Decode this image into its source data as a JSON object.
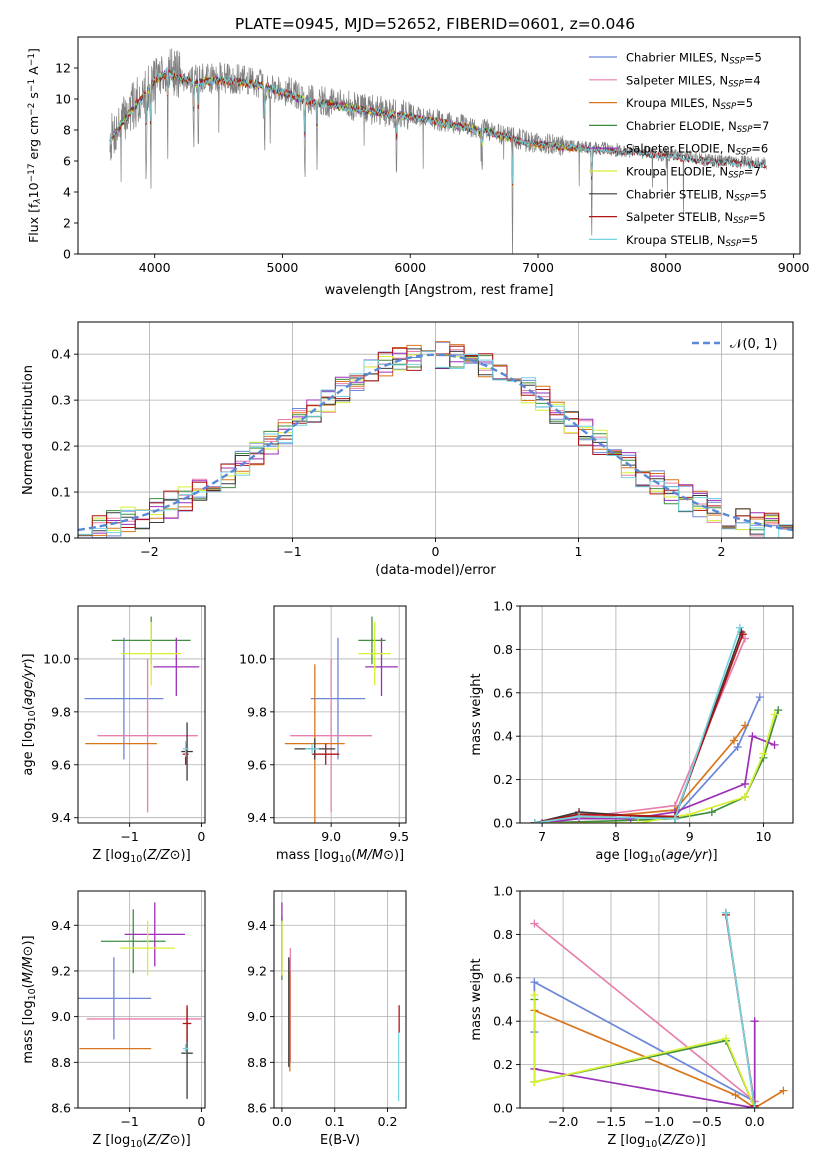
{
  "figure_title": "PLATE=0945, MJD=52652, FIBERID=0601, z=0.046",
  "models": [
    {
      "name": "Chabrier MILES",
      "nssp": "5",
      "color": "#6b87d8"
    },
    {
      "name": "Salpeter MILES",
      "nssp": "4",
      "color": "#e77fae"
    },
    {
      "name": "Kroupa MILES",
      "nssp": "5",
      "color": "#d8751d"
    },
    {
      "name": "Chabrier ELODIE",
      "nssp": "7",
      "color": "#3f8f3f"
    },
    {
      "name": "Salpeter ELODIE",
      "nssp": "6",
      "color": "#9b2fb8"
    },
    {
      "name": "Kroupa ELODIE",
      "nssp": "7",
      "color": "#d8ef33"
    },
    {
      "name": "Chabrier STELIB",
      "nssp": "5",
      "color": "#3a3a3a"
    },
    {
      "name": "Salpeter STELIB",
      "nssp": "5",
      "color": "#b01515"
    },
    {
      "name": "Kroupa STELIB",
      "nssp": "5",
      "color": "#76d4e0"
    }
  ],
  "chart_data": [
    {
      "id": "spectrum",
      "type": "line",
      "xlabel": "wavelength [Angstrom, rest frame]",
      "ylabel_parts": {
        "a": "Flux [f",
        "b": "λ",
        "c": "10",
        "d": "−17",
        "e": " erg cm",
        "f": "−2",
        "g": " s",
        "h": "−1",
        "i": " A",
        "j": "−1",
        "k": "]"
      },
      "xlim": [
        3400,
        9050
      ],
      "ylim": [
        0,
        14
      ],
      "xticks": [
        4000,
        5000,
        6000,
        7000,
        8000,
        9000
      ],
      "yticks": [
        0,
        2,
        4,
        6,
        8,
        10,
        12
      ],
      "data_color": "#808080",
      "legend_position": "top-right",
      "legend_nssp_prefix": "N",
      "legend_nssp_sub": "SSP",
      "continuum": [
        [
          3650,
          7.4
        ],
        [
          3800,
          9.2
        ],
        [
          3900,
          10.2
        ],
        [
          4000,
          11.4
        ],
        [
          4100,
          11.9
        ],
        [
          4300,
          11.2
        ],
        [
          4500,
          11.4
        ],
        [
          4800,
          11.1
        ],
        [
          5000,
          10.6
        ],
        [
          5200,
          10.0
        ],
        [
          5500,
          9.6
        ],
        [
          5800,
          9.2
        ],
        [
          6000,
          9.0
        ],
        [
          6300,
          8.5
        ],
        [
          6600,
          8.0
        ],
        [
          6900,
          7.3
        ],
        [
          7200,
          7.0
        ],
        [
          7500,
          6.8
        ],
        [
          7800,
          6.6
        ],
        [
          8100,
          6.3
        ],
        [
          8400,
          6.0
        ],
        [
          8700,
          5.9
        ],
        [
          8790,
          5.8
        ]
      ],
      "absorption_lines": [
        [
          3934,
          0.3
        ],
        [
          3969,
          0.35
        ],
        [
          4102,
          0.5
        ],
        [
          4305,
          0.55
        ],
        [
          4341,
          0.55
        ],
        [
          4861,
          0.5
        ],
        [
          5175,
          0.35
        ],
        [
          5270,
          0.6
        ],
        [
          5892,
          0.4
        ],
        [
          6563,
          0.6
        ],
        [
          6800,
          0.0
        ],
        [
          7420,
          0.0
        ]
      ]
    },
    {
      "id": "residuals",
      "type": "histogram",
      "xlabel": "(data-model)/error",
      "ylabel": "Normed distribution",
      "xlim": [
        -2.5,
        2.5
      ],
      "ylim": [
        0,
        0.47
      ],
      "xticks": [
        -2,
        -1,
        0,
        1,
        2
      ],
      "yticks": [
        0,
        0.1,
        0.2,
        0.3,
        0.4
      ],
      "bin_width": 0.1,
      "legend_position": "top-right",
      "legend_label": "𝒩(0, 1)",
      "normal_curve_color": "#5a8ad6"
    },
    {
      "id": "age-vs-z",
      "type": "errorbar",
      "xlabel": "Z [log10(Z/Z⊙)]",
      "ylabel": "age  [log10(age/yr)]",
      "xlim": [
        -1.72,
        0.05
      ],
      "ylim": [
        9.38,
        10.2
      ],
      "xticks": [
        -1,
        0
      ],
      "yticks": [
        9.4,
        9.6,
        9.8,
        10.0
      ],
      "points": [
        {
          "color": "#6b87d8",
          "x": -1.08,
          "xerr": 0.55,
          "y": 9.85,
          "yerr": 0.23
        },
        {
          "color": "#e77fae",
          "x": -0.75,
          "xerr": 0.7,
          "y": 9.71,
          "yerr": 0.29
        },
        {
          "color": "#d8751d",
          "x": -1.12,
          "xerr": 0.5,
          "y": 9.68,
          "yerr": 0.0
        },
        {
          "color": "#3f8f3f",
          "x": -0.7,
          "xerr": 0.55,
          "y": 10.07,
          "yerr": 0.09
        },
        {
          "color": "#9b2fb8",
          "x": -0.35,
          "xerr": 0.32,
          "y": 9.97,
          "yerr": 0.11
        },
        {
          "color": "#d8ef33",
          "x": -0.7,
          "xerr": 0.42,
          "y": 10.02,
          "yerr": 0.12
        },
        {
          "color": "#3a3a3a",
          "x": -0.2,
          "xerr": 0.08,
          "y": 9.65,
          "yerr": 0.11
        },
        {
          "color": "#b01515",
          "x": -0.22,
          "xerr": 0.04,
          "y": 9.64,
          "yerr": 0.04
        },
        {
          "color": "#76d4e0",
          "x": -0.22,
          "xerr": 0.04,
          "y": 9.66,
          "yerr": 0.03
        }
      ]
    },
    {
      "id": "age-vs-mass",
      "type": "errorbar",
      "xlabel": "mass [log10(M/M⊙)]",
      "ylabel": "",
      "xlim": [
        8.58,
        9.55
      ],
      "ylim": [
        9.38,
        10.2
      ],
      "xticks": [
        9.0,
        9.5
      ],
      "yticks": [
        9.4,
        9.6,
        9.8,
        10.0
      ],
      "points": [
        {
          "color": "#6b87d8",
          "x": 9.05,
          "xerr": 0.2,
          "y": 9.85,
          "yerr": 0.23
        },
        {
          "color": "#e77fae",
          "x": 9.0,
          "xerr": 0.3,
          "y": 9.71,
          "yerr": 0.29
        },
        {
          "color": "#d8751d",
          "x": 8.88,
          "xerr": 0.22,
          "y": 9.68,
          "yerr": 0.3
        },
        {
          "color": "#3f8f3f",
          "x": 9.3,
          "xerr": 0.1,
          "y": 10.07,
          "yerr": 0.09
        },
        {
          "color": "#9b2fb8",
          "x": 9.37,
          "xerr": 0.12,
          "y": 9.97,
          "yerr": 0.11
        },
        {
          "color": "#d8ef33",
          "x": 9.32,
          "xerr": 0.12,
          "y": 10.02,
          "yerr": 0.12
        },
        {
          "color": "#3a3a3a",
          "x": 8.88,
          "xerr": 0.15,
          "y": 9.66,
          "yerr": 0.04
        },
        {
          "color": "#b01515",
          "x": 8.96,
          "xerr": 0.1,
          "y": 9.64,
          "yerr": 0.04
        },
        {
          "color": "#76d4e0",
          "x": 8.86,
          "xerr": 0.05,
          "y": 9.66,
          "yerr": 0.02
        }
      ]
    },
    {
      "id": "mass-weight-vs-age",
      "type": "line",
      "xlabel": "age  [log10(age/yr)]",
      "ylabel": "mass weight",
      "xlim": [
        6.7,
        10.4
      ],
      "ylim": [
        0,
        1.0
      ],
      "xticks": [
        7,
        8,
        9,
        10
      ],
      "yticks": [
        0,
        0.2,
        0.4,
        0.6,
        0.8,
        1.0
      ],
      "series": [
        {
          "color": "#6b87d8",
          "points": [
            [
              6.9,
              0.0
            ],
            [
              7.5,
              0.04
            ],
            [
              8.0,
              0.02
            ],
            [
              8.8,
              0.03
            ],
            [
              9.65,
              0.35
            ],
            [
              9.95,
              0.58
            ]
          ]
        },
        {
          "color": "#e77fae",
          "points": [
            [
              6.9,
              0.0
            ],
            [
              8.8,
              0.08
            ],
            [
              9.75,
              0.85
            ]
          ]
        },
        {
          "color": "#d8751d",
          "points": [
            [
              6.9,
              0.0
            ],
            [
              7.5,
              0.02
            ],
            [
              8.8,
              0.06
            ],
            [
              9.6,
              0.38
            ],
            [
              9.75,
              0.45
            ]
          ]
        },
        {
          "color": "#3f8f3f",
          "points": [
            [
              6.9,
              0.0
            ],
            [
              8.0,
              0.01
            ],
            [
              8.8,
              0.02
            ],
            [
              9.3,
              0.05
            ],
            [
              9.75,
              0.12
            ],
            [
              10.0,
              0.3
            ],
            [
              10.2,
              0.52
            ]
          ]
        },
        {
          "color": "#9b2fb8",
          "points": [
            [
              7.0,
              0.0
            ],
            [
              7.5,
              0.02
            ],
            [
              8.2,
              0.02
            ],
            [
              8.8,
              0.05
            ],
            [
              9.75,
              0.18
            ],
            [
              9.85,
              0.4
            ],
            [
              10.15,
              0.36
            ]
          ]
        },
        {
          "color": "#d8ef33",
          "points": [
            [
              6.9,
              0.0
            ],
            [
              8.3,
              0.0
            ],
            [
              9.0,
              0.04
            ],
            [
              9.75,
              0.12
            ],
            [
              10.0,
              0.32
            ],
            [
              10.15,
              0.5
            ]
          ]
        },
        {
          "color": "#3a3a3a",
          "points": [
            [
              6.9,
              0.0
            ],
            [
              7.5,
              0.05
            ],
            [
              8.8,
              0.02
            ],
            [
              9.7,
              0.88
            ]
          ]
        },
        {
          "color": "#b01515",
          "points": [
            [
              6.9,
              0.0
            ],
            [
              7.5,
              0.04
            ],
            [
              8.8,
              0.03
            ],
            [
              9.72,
              0.87
            ]
          ]
        },
        {
          "color": "#76d4e0",
          "points": [
            [
              6.9,
              0.0
            ],
            [
              7.5,
              0.03
            ],
            [
              8.8,
              0.02
            ],
            [
              9.68,
              0.9
            ]
          ]
        }
      ]
    },
    {
      "id": "mass-vs-z",
      "type": "errorbar",
      "xlabel": "Z [log10(Z/Z⊙)]",
      "ylabel": "mass [log10(M/M⊙)]",
      "xlim": [
        -1.72,
        0.05
      ],
      "ylim": [
        8.6,
        9.55
      ],
      "xticks": [
        -1,
        0
      ],
      "yticks": [
        8.6,
        8.8,
        9.0,
        9.2,
        9.4
      ],
      "points": [
        {
          "color": "#6b87d8",
          "x": -1.22,
          "xerr": 0.52,
          "y": 9.08,
          "yerr": 0.18
        },
        {
          "color": "#e77fae",
          "x": -0.8,
          "xerr": 0.8,
          "y": 8.99,
          "yerr": 0.0
        },
        {
          "color": "#d8751d",
          "x": -1.2,
          "xerr": 0.5,
          "y": 8.86,
          "yerr": 0.0
        },
        {
          "color": "#3f8f3f",
          "x": -0.95,
          "xerr": 0.45,
          "y": 9.33,
          "yerr": 0.14
        },
        {
          "color": "#9b2fb8",
          "x": -0.65,
          "xerr": 0.42,
          "y": 9.36,
          "yerr": 0.14
        },
        {
          "color": "#d8ef33",
          "x": -0.75,
          "xerr": 0.38,
          "y": 9.3,
          "yerr": 0.12
        },
        {
          "color": "#3a3a3a",
          "x": -0.2,
          "xerr": 0.08,
          "y": 8.84,
          "yerr": 0.2
        },
        {
          "color": "#b01515",
          "x": -0.2,
          "xerr": 0.06,
          "y": 8.97,
          "yerr": 0.08
        },
        {
          "color": "#76d4e0",
          "x": -0.22,
          "xerr": 0.04,
          "y": 8.86,
          "yerr": 0.02
        }
      ]
    },
    {
      "id": "mass-vs-ebv",
      "type": "errorbar",
      "xlabel": "E(B-V)",
      "ylabel": "",
      "xlim": [
        -0.015,
        0.235
      ],
      "ylim": [
        8.6,
        9.55
      ],
      "xticks": [
        0.0,
        0.1,
        0.2
      ],
      "yticks": [
        8.6,
        8.8,
        9.0,
        9.2,
        9.4
      ],
      "points": [
        {
          "color": "#6b87d8",
          "x": 0.015,
          "xerr": 0.0,
          "y": 9.05,
          "yerr": 0.2
        },
        {
          "color": "#e77fae",
          "x": 0.016,
          "xerr": 0.0,
          "y": 9.05,
          "yerr": 0.25
        },
        {
          "color": "#d8751d",
          "x": 0.015,
          "xerr": 0.0,
          "y": 8.98,
          "yerr": 0.22
        },
        {
          "color": "#3f8f3f",
          "x": 0.0,
          "xerr": 0.0,
          "y": 9.3,
          "yerr": 0.14
        },
        {
          "color": "#9b2fb8",
          "x": 0.0,
          "xerr": 0.0,
          "y": 9.35,
          "yerr": 0.15
        },
        {
          "color": "#d8ef33",
          "x": 0.0,
          "xerr": 0.0,
          "y": 9.3,
          "yerr": 0.12
        },
        {
          "color": "#3a3a3a",
          "x": 0.013,
          "xerr": 0.0,
          "y": 9.02,
          "yerr": 0.24
        },
        {
          "color": "#b01515",
          "x": 0.222,
          "xerr": 0.0,
          "y": 8.99,
          "yerr": 0.06
        },
        {
          "color": "#76d4e0",
          "x": 0.221,
          "xerr": 0.0,
          "y": 8.78,
          "yerr": 0.15
        }
      ]
    },
    {
      "id": "mass-weight-vs-z",
      "type": "line",
      "xlabel": "Z [log10(Z/Z⊙)]",
      "ylabel": "mass weight",
      "xlim": [
        -2.45,
        0.4
      ],
      "ylim": [
        0,
        1.0
      ],
      "xticks": [
        -2.0,
        -1.5,
        -1.0,
        -0.5,
        0.0
      ],
      "yticks": [
        0,
        0.2,
        0.4,
        0.6,
        0.8,
        1.0
      ],
      "series": [
        {
          "color": "#6b87d8",
          "points": [
            [
              -2.3,
              0.35
            ],
            [
              -2.3,
              0.58
            ],
            [
              0.0,
              0.03
            ]
          ]
        },
        {
          "color": "#e77fae",
          "points": [
            [
              -2.3,
              0.85
            ],
            [
              0.0,
              0.03
            ]
          ]
        },
        {
          "color": "#d8751d",
          "points": [
            [
              -2.3,
              0.45
            ],
            [
              -0.2,
              0.06
            ],
            [
              0.0,
              0.0
            ],
            [
              0.3,
              0.08
            ]
          ]
        },
        {
          "color": "#3f8f3f",
          "points": [
            [
              -2.3,
              0.5
            ],
            [
              -2.3,
              0.12
            ],
            [
              -0.3,
              0.31
            ],
            [
              0.0,
              0.0
            ]
          ]
        },
        {
          "color": "#9b2fb8",
          "points": [
            [
              -2.3,
              0.18
            ],
            [
              0.0,
              0.0
            ],
            [
              0.0,
              0.4
            ]
          ]
        },
        {
          "color": "#d8ef33",
          "points": [
            [
              -2.3,
              0.52
            ],
            [
              -2.3,
              0.12
            ],
            [
              -0.3,
              0.32
            ],
            [
              0.0,
              0.0
            ]
          ]
        },
        {
          "color": "#3a3a3a",
          "points": [
            [
              -0.3,
              0.9
            ],
            [
              0.0,
              0.0
            ]
          ]
        },
        {
          "color": "#b01515",
          "points": [
            [
              -0.3,
              0.89
            ],
            [
              0.0,
              0.01
            ]
          ]
        },
        {
          "color": "#76d4e0",
          "points": [
            [
              -0.3,
              0.9
            ],
            [
              0.0,
              0.0
            ]
          ]
        }
      ]
    }
  ]
}
